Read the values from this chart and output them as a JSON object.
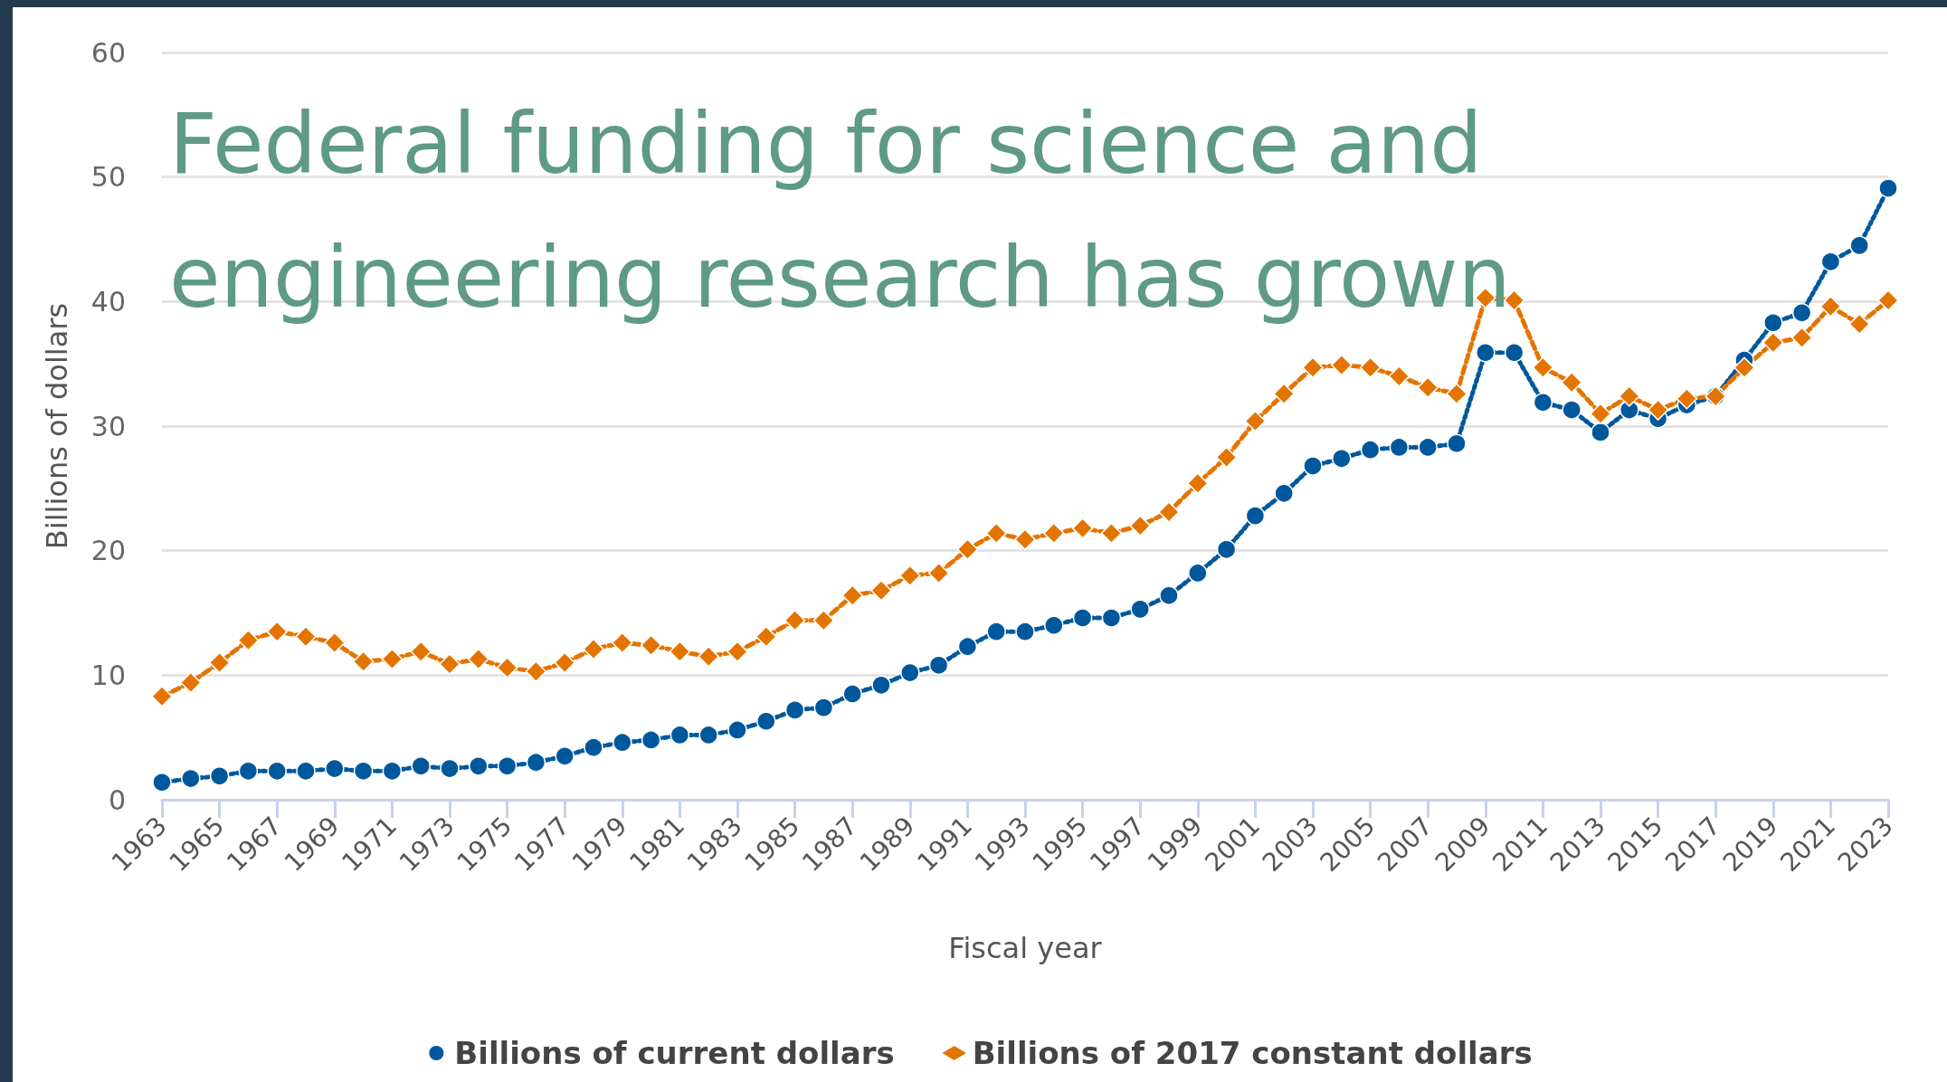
{
  "chart_data": {
    "type": "line",
    "title": "Federal funding for science and engineering research has grown",
    "xlabel": "Fiscal year",
    "ylabel": "Billions of dollars",
    "x": [
      1963,
      1964,
      1965,
      1966,
      1967,
      1968,
      1969,
      1970,
      1971,
      1972,
      1973,
      1974,
      1975,
      1976,
      1977,
      1978,
      1979,
      1980,
      1981,
      1982,
      1983,
      1984,
      1985,
      1986,
      1987,
      1988,
      1989,
      1990,
      1991,
      1992,
      1993,
      1994,
      1995,
      1996,
      1997,
      1998,
      1999,
      2000,
      2001,
      2002,
      2003,
      2004,
      2005,
      2006,
      2007,
      2008,
      2009,
      2010,
      2011,
      2012,
      2013,
      2014,
      2015,
      2016,
      2017,
      2018,
      2019,
      2020,
      2021,
      2022,
      2023
    ],
    "series": [
      {
        "name": "Billions of current dollars",
        "color": "#00589c",
        "marker": "circle",
        "line_style": "dotted",
        "values": [
          1.4,
          1.7,
          1.9,
          2.3,
          2.3,
          2.3,
          2.5,
          2.3,
          2.3,
          2.7,
          2.5,
          2.7,
          2.7,
          3.0,
          3.5,
          4.2,
          4.6,
          4.8,
          5.2,
          5.2,
          5.6,
          6.3,
          7.2,
          7.4,
          8.5,
          9.2,
          10.2,
          10.8,
          12.3,
          13.5,
          13.5,
          14.0,
          14.6,
          14.6,
          15.3,
          16.4,
          18.2,
          20.1,
          22.8,
          24.6,
          26.8,
          27.4,
          28.1,
          28.3,
          28.3,
          28.6,
          35.9,
          35.9,
          31.9,
          31.3,
          29.5,
          31.3,
          30.6,
          31.7,
          32.4,
          35.3,
          38.3,
          39.1,
          43.2,
          44.5,
          49.1
        ]
      },
      {
        "name": "Billions of 2017 constant dollars",
        "color": "#e47400",
        "marker": "diamond",
        "line_style": "dashed",
        "values": [
          8.3,
          9.4,
          11.0,
          12.8,
          13.5,
          13.1,
          12.6,
          11.1,
          11.3,
          11.9,
          10.9,
          11.3,
          10.6,
          10.3,
          11.0,
          12.1,
          12.6,
          12.4,
          11.9,
          11.5,
          11.9,
          13.1,
          14.4,
          14.4,
          16.4,
          16.8,
          18.0,
          18.2,
          20.1,
          21.4,
          20.9,
          21.4,
          21.8,
          21.4,
          22.0,
          23.1,
          25.4,
          27.5,
          30.4,
          32.6,
          34.7,
          34.9,
          34.7,
          34.0,
          33.1,
          32.6,
          40.3,
          40.1,
          34.7,
          33.5,
          31.0,
          32.4,
          31.3,
          32.2,
          32.4,
          34.7,
          36.7,
          37.1,
          39.6,
          38.2,
          40.1
        ]
      }
    ],
    "xlim": [
      1963,
      2023
    ],
    "xticks": [
      1963,
      1965,
      1967,
      1969,
      1971,
      1973,
      1975,
      1977,
      1979,
      1981,
      1983,
      1985,
      1987,
      1989,
      1991,
      1993,
      1995,
      1997,
      1999,
      2001,
      2003,
      2005,
      2007,
      2009,
      2011,
      2013,
      2015,
      2017,
      2019,
      2021,
      2023
    ],
    "ylim": [
      0,
      60
    ],
    "yticks": [
      0,
      10,
      20,
      30,
      40,
      50,
      60
    ],
    "grid": "y",
    "legend": "bottom"
  }
}
